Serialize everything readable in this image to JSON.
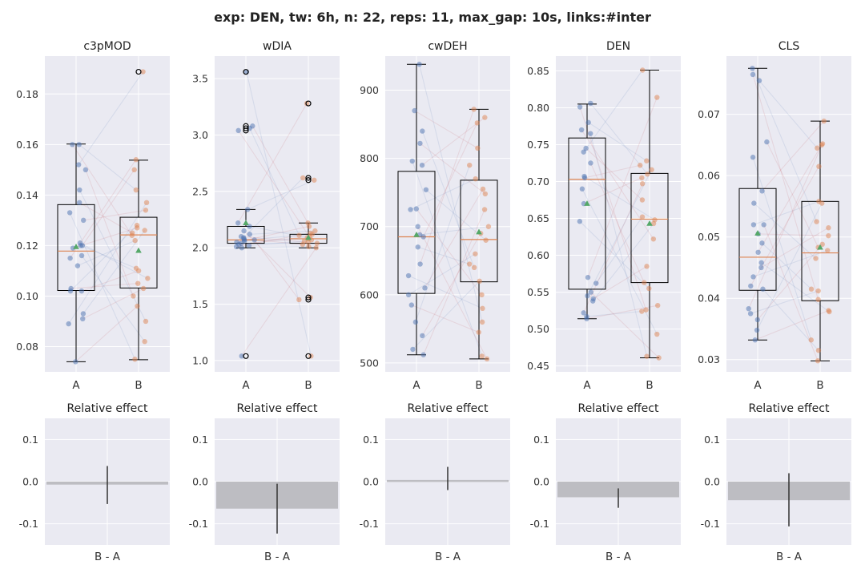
{
  "suptitle": "exp: DEN, tw: 6h, n: 22, reps: 11, max_gap: 10s, links:#inter",
  "colors": {
    "background": "#eaeaf2",
    "grid": "#ffffff",
    "group_a": "#4c72b0",
    "group_b": "#dd8452",
    "mean_marker": "#55a868",
    "median": "#dd8452",
    "effect_bar": "#bdbdc2",
    "error_bar": "#333333"
  },
  "chart_data": [
    {
      "type": "box",
      "title": "c3pMOD",
      "categories": [
        "A",
        "B"
      ],
      "ylim": [
        0.07,
        0.195
      ],
      "yticks": [
        0.08,
        0.1,
        0.12,
        0.14,
        0.16,
        0.18
      ],
      "tick_labels": [
        "0.08",
        "0.10",
        "0.12",
        "0.14",
        "0.16",
        "0.18"
      ],
      "boxes": [
        {
          "name": "A",
          "whislo": 0.074,
          "q1": 0.1022,
          "median": 0.1178,
          "q3": 0.1362,
          "whishi": 0.1602,
          "mean": 0.1195,
          "fliers": [],
          "points": [
            0.16,
            0.16,
            0.152,
            0.15,
            0.142,
            0.137,
            0.133,
            0.13,
            0.121,
            0.12,
            0.12,
            0.119,
            0.116,
            0.115,
            0.112,
            0.103,
            0.102,
            0.102,
            0.093,
            0.091,
            0.089,
            0.074
          ]
        },
        {
          "name": "B",
          "whislo": 0.0748,
          "q1": 0.1032,
          "median": 0.1242,
          "q3": 0.1312,
          "whishi": 0.1538,
          "mean": 0.118,
          "fliers": [
            0.1888
          ],
          "points": [
            0.1888,
            0.154,
            0.15,
            0.142,
            0.137,
            0.134,
            0.128,
            0.127,
            0.126,
            0.125,
            0.124,
            0.122,
            0.111,
            0.11,
            0.107,
            0.105,
            0.103,
            0.1,
            0.096,
            0.09,
            0.082,
            0.075
          ]
        }
      ],
      "links": [
        [
          0,
          3
        ],
        [
          1,
          10
        ],
        [
          2,
          0
        ],
        [
          3,
          17
        ],
        [
          4,
          19
        ],
        [
          5,
          9
        ],
        [
          6,
          21
        ],
        [
          7,
          5
        ],
        [
          8,
          14
        ],
        [
          9,
          2
        ],
        [
          10,
          12
        ],
        [
          11,
          7
        ],
        [
          12,
          20
        ],
        [
          13,
          1
        ],
        [
          14,
          11
        ],
        [
          15,
          15
        ],
        [
          16,
          6
        ],
        [
          17,
          13
        ],
        [
          18,
          8
        ],
        [
          19,
          16
        ],
        [
          20,
          4
        ],
        [
          21,
          18
        ]
      ]
    },
    {
      "type": "box",
      "title": "wDIA",
      "categories": [
        "A",
        "B"
      ],
      "ylim": [
        0.9,
        3.7
      ],
      "yticks": [
        1.0,
        1.5,
        2.0,
        2.5,
        3.0,
        3.5
      ],
      "tick_labels": [
        "1.0",
        "1.5",
        "2.0",
        "2.5",
        "3.0",
        "3.5"
      ],
      "boxes": [
        {
          "name": "A",
          "whislo": 2.0,
          "q1": 2.04,
          "median": 2.07,
          "q3": 2.19,
          "whishi": 2.34,
          "mean": 2.22,
          "fliers": [
            3.56,
            3.08,
            3.06,
            3.04,
            1.04
          ],
          "points": [
            3.56,
            3.08,
            3.06,
            3.04,
            2.34,
            2.22,
            2.19,
            2.15,
            2.12,
            2.1,
            2.09,
            2.08,
            2.07,
            2.07,
            2.06,
            2.05,
            2.04,
            2.03,
            2.02,
            2.01,
            2.0,
            1.04
          ]
        },
        {
          "name": "B",
          "whislo": 2.0,
          "q1": 2.04,
          "median": 2.08,
          "q3": 2.12,
          "whishi": 2.22,
          "mean": 2.09,
          "fliers": [
            3.28,
            2.62,
            2.6,
            1.56,
            1.54,
            1.04
          ],
          "points": [
            3.28,
            2.62,
            2.6,
            2.22,
            2.19,
            2.15,
            2.13,
            2.12,
            2.11,
            2.1,
            2.09,
            2.08,
            2.07,
            2.06,
            2.05,
            2.04,
            2.03,
            2.01,
            2.0,
            1.56,
            1.54,
            1.04
          ]
        }
      ],
      "links": [
        [
          0,
          21
        ],
        [
          1,
          3
        ],
        [
          2,
          8
        ],
        [
          3,
          12
        ],
        [
          4,
          2
        ],
        [
          5,
          0
        ],
        [
          6,
          10
        ],
        [
          7,
          19
        ],
        [
          8,
          5
        ],
        [
          9,
          14
        ],
        [
          10,
          1
        ],
        [
          11,
          16
        ],
        [
          12,
          7
        ],
        [
          13,
          20
        ],
        [
          14,
          11
        ],
        [
          15,
          4
        ],
        [
          16,
          15
        ],
        [
          17,
          9
        ],
        [
          18,
          13
        ],
        [
          19,
          6
        ],
        [
          20,
          17
        ],
        [
          21,
          18
        ]
      ]
    },
    {
      "type": "box",
      "title": "cwDEH",
      "categories": [
        "A",
        "B"
      ],
      "ylim": [
        487,
        950
      ],
      "yticks": [
        500,
        600,
        700,
        800,
        900
      ],
      "tick_labels": [
        "500",
        "600",
        "700",
        "800",
        "900"
      ],
      "boxes": [
        {
          "name": "A",
          "whislo": 512,
          "q1": 602,
          "median": 685,
          "q3": 781,
          "whishi": 938,
          "mean": 688,
          "fliers": [],
          "points": [
            938,
            870,
            840,
            822,
            796,
            790,
            754,
            726,
            725,
            700,
            688,
            685,
            670,
            645,
            628,
            610,
            600,
            585,
            560,
            540,
            520,
            512
          ]
        },
        {
          "name": "B",
          "whislo": 506,
          "q1": 619,
          "median": 681,
          "q3": 768,
          "whishi": 872,
          "mean": 692,
          "fliers": [],
          "points": [
            872,
            860,
            852,
            815,
            790,
            770,
            755,
            748,
            725,
            700,
            690,
            680,
            660,
            645,
            640,
            620,
            600,
            580,
            560,
            545,
            510,
            506
          ]
        }
      ],
      "links": [
        [
          0,
          18
        ],
        [
          1,
          3
        ],
        [
          2,
          14
        ],
        [
          3,
          7
        ],
        [
          4,
          20
        ],
        [
          5,
          1
        ],
        [
          6,
          11
        ],
        [
          7,
          16
        ],
        [
          8,
          5
        ],
        [
          9,
          21
        ],
        [
          10,
          9
        ],
        [
          11,
          2
        ],
        [
          12,
          13
        ],
        [
          13,
          0
        ],
        [
          14,
          17
        ],
        [
          15,
          6
        ],
        [
          16,
          12
        ],
        [
          17,
          19
        ],
        [
          18,
          4
        ],
        [
          19,
          10
        ],
        [
          20,
          15
        ],
        [
          21,
          8
        ]
      ]
    },
    {
      "type": "box",
      "title": "DEN",
      "categories": [
        "A",
        "B"
      ],
      "ylim": [
        0.442,
        0.87
      ],
      "yticks": [
        0.45,
        0.5,
        0.55,
        0.6,
        0.65,
        0.7,
        0.75,
        0.8,
        0.85
      ],
      "tick_labels": [
        "0.45",
        "0.50",
        "0.55",
        "0.60",
        "0.65",
        "0.70",
        "0.75",
        "0.80",
        "0.85"
      ],
      "boxes": [
        {
          "name": "A",
          "whislo": 0.514,
          "q1": 0.554,
          "median": 0.703,
          "q3": 0.759,
          "whishi": 0.805,
          "mean": 0.67,
          "fliers": [],
          "points": [
            0.806,
            0.801,
            0.78,
            0.77,
            0.765,
            0.745,
            0.74,
            0.725,
            0.707,
            0.705,
            0.69,
            0.67,
            0.646,
            0.57,
            0.562,
            0.55,
            0.545,
            0.541,
            0.538,
            0.522,
            0.517,
            0.514
          ]
        },
        {
          "name": "B",
          "whislo": 0.461,
          "q1": 0.563,
          "median": 0.649,
          "q3": 0.711,
          "whishi": 0.851,
          "mean": 0.643,
          "fliers": [],
          "points": [
            0.851,
            0.814,
            0.728,
            0.722,
            0.716,
            0.71,
            0.705,
            0.697,
            0.675,
            0.652,
            0.648,
            0.643,
            0.622,
            0.585,
            0.563,
            0.555,
            0.532,
            0.526,
            0.524,
            0.493,
            0.463,
            0.461
          ]
        }
      ],
      "links": [
        [
          0,
          5
        ],
        [
          1,
          17
        ],
        [
          2,
          2
        ],
        [
          3,
          12
        ],
        [
          4,
          20
        ],
        [
          5,
          8
        ],
        [
          6,
          0
        ],
        [
          7,
          14
        ],
        [
          8,
          10
        ],
        [
          9,
          3
        ],
        [
          10,
          19
        ],
        [
          11,
          6
        ],
        [
          12,
          15
        ],
        [
          13,
          1
        ],
        [
          14,
          9
        ],
        [
          15,
          21
        ],
        [
          16,
          4
        ],
        [
          17,
          13
        ],
        [
          18,
          11
        ],
        [
          19,
          7
        ],
        [
          20,
          18
        ],
        [
          21,
          16
        ]
      ]
    },
    {
      "type": "box",
      "title": "CLS",
      "categories": [
        "A",
        "B"
      ],
      "ylim": [
        0.028,
        0.0795
      ],
      "yticks": [
        0.03,
        0.04,
        0.05,
        0.06,
        0.07
      ],
      "tick_labels": [
        "0.03",
        "0.04",
        "0.05",
        "0.06",
        "0.07"
      ],
      "boxes": [
        {
          "name": "A",
          "whislo": 0.0332,
          "q1": 0.0413,
          "median": 0.0467,
          "q3": 0.0579,
          "whishi": 0.0775,
          "mean": 0.0506,
          "fliers": [],
          "points": [
            0.0775,
            0.0765,
            0.0755,
            0.0655,
            0.063,
            0.0575,
            0.0555,
            0.052,
            0.052,
            0.0505,
            0.049,
            0.0475,
            0.0458,
            0.045,
            0.0435,
            0.042,
            0.0415,
            0.0383,
            0.0375,
            0.0365,
            0.0348,
            0.0332
          ]
        },
        {
          "name": "B",
          "whislo": 0.0298,
          "q1": 0.0396,
          "median": 0.0474,
          "q3": 0.0558,
          "whishi": 0.0689,
          "mean": 0.0483,
          "fliers": [],
          "points": [
            0.0689,
            0.0652,
            0.065,
            0.0645,
            0.0615,
            0.0558,
            0.0555,
            0.0525,
            0.0515,
            0.0502,
            0.0488,
            0.0483,
            0.0478,
            0.0465,
            0.0415,
            0.0412,
            0.0398,
            0.038,
            0.0378,
            0.0332,
            0.0315,
            0.0298
          ]
        }
      ],
      "links": [
        [
          0,
          7
        ],
        [
          1,
          16
        ],
        [
          2,
          3
        ],
        [
          3,
          11
        ],
        [
          4,
          19
        ],
        [
          5,
          0
        ],
        [
          6,
          13
        ],
        [
          7,
          21
        ],
        [
          8,
          5
        ],
        [
          9,
          9
        ],
        [
          10,
          14
        ],
        [
          11,
          2
        ],
        [
          12,
          18
        ],
        [
          13,
          8
        ],
        [
          14,
          12
        ],
        [
          15,
          4
        ],
        [
          16,
          20
        ],
        [
          17,
          1
        ],
        [
          18,
          15
        ],
        [
          19,
          10
        ],
        [
          20,
          6
        ],
        [
          21,
          17
        ]
      ]
    }
  ],
  "effects": [
    {
      "title": "Relative effect",
      "xlabel": "B - A",
      "ylim": [
        -0.15,
        0.15
      ],
      "yticks": [
        -0.1,
        0.0,
        0.1
      ],
      "tick_labels": [
        "-0.1",
        "0.0",
        "0.1"
      ],
      "value": -0.007,
      "ci": [
        -0.053,
        0.037
      ]
    },
    {
      "title": "Relative effect",
      "xlabel": "B - A",
      "ylim": [
        -0.15,
        0.15
      ],
      "yticks": [
        -0.1,
        0.0,
        0.1
      ],
      "tick_labels": [
        "-0.1",
        "0.0",
        "0.1"
      ],
      "value": -0.064,
      "ci": [
        -0.123,
        -0.005
      ]
    },
    {
      "title": "Relative effect",
      "xlabel": "B - A",
      "ylim": [
        -0.15,
        0.15
      ],
      "yticks": [
        -0.1,
        0.0,
        0.1
      ],
      "tick_labels": [
        "-0.1",
        "0.0",
        "0.1"
      ],
      "value": 0.004,
      "ci": [
        -0.02,
        0.035
      ]
    },
    {
      "title": "Relative effect",
      "xlabel": "B - A",
      "ylim": [
        -0.15,
        0.15
      ],
      "yticks": [
        -0.1,
        0.0,
        0.1
      ],
      "tick_labels": [
        "-0.1",
        "0.0",
        "0.1"
      ],
      "value": -0.037,
      "ci": [
        -0.062,
        -0.016
      ]
    },
    {
      "title": "Relative effect",
      "xlabel": "B - A",
      "ylim": [
        -0.15,
        0.15
      ],
      "yticks": [
        -0.1,
        0.0,
        0.1
      ],
      "tick_labels": [
        "-0.1",
        "0.0",
        "0.1"
      ],
      "value": -0.044,
      "ci": [
        -0.106,
        0.02
      ]
    }
  ]
}
